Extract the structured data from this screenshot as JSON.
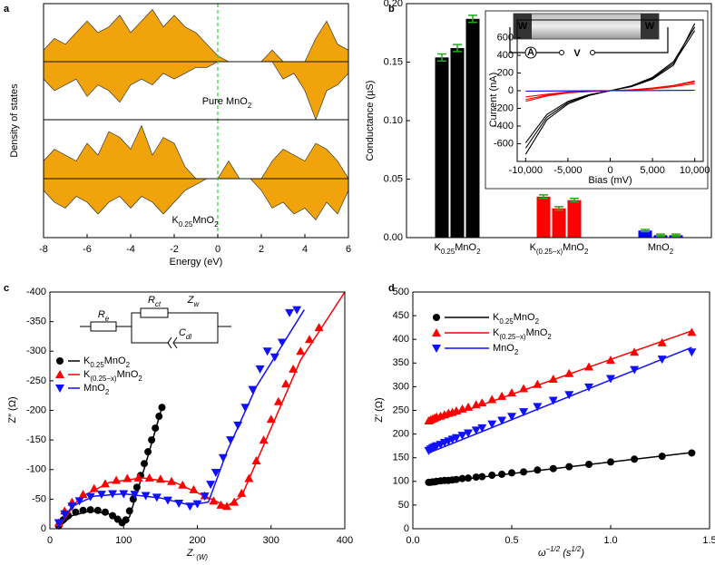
{
  "chart_data": [
    {
      "type": "dos",
      "panel_label": "a",
      "ylabel": "Density of states",
      "annotation": "Pure MnO2",
      "xlim": [
        -8,
        6
      ],
      "ylim": [
        -10,
        10
      ],
      "fermi_level": 0,
      "fermi_color": "#33cc33",
      "x": [
        -8,
        -7.5,
        -7,
        -6.5,
        -6,
        -5.5,
        -5,
        -4.5,
        -4,
        -3.5,
        -3,
        -2.5,
        -2,
        -1.5,
        -1,
        -0.5,
        0,
        0.5,
        1,
        1.5,
        2,
        2.5,
        3,
        3.5,
        4,
        4.5,
        5,
        5.5,
        6
      ],
      "series": [
        {
          "color": "#f0a30a",
          "values": [
            2,
            4,
            3,
            5,
            7,
            5,
            6,
            8,
            5,
            7,
            9,
            6,
            8,
            6,
            5,
            3,
            1,
            0,
            0,
            0,
            0,
            2,
            0,
            0,
            0,
            4,
            7,
            3,
            2
          ]
        },
        {
          "color": "#f0a30a",
          "values": [
            -3,
            -5,
            -4,
            -3,
            -6,
            -4,
            -5,
            -7,
            -4,
            -3,
            -4,
            -2,
            -3,
            -2,
            -1,
            -1,
            0,
            0,
            0,
            0,
            0,
            0,
            -3,
            -2,
            -5,
            -10,
            -5,
            -4,
            -2
          ]
        }
      ]
    },
    {
      "type": "dos",
      "annotation": "K0.25MnO2",
      "xlabel": "Energy (eV)",
      "xlim": [
        -8,
        6
      ],
      "ylim": [
        -10,
        10
      ],
      "fermi_level": 0,
      "fermi_color": "#33cc33",
      "xticks": [
        -8,
        -6,
        -4,
        -2,
        0,
        2,
        4,
        6
      ],
      "x": [
        -8,
        -7.5,
        -7,
        -6.5,
        -6,
        -5.5,
        -5,
        -4.5,
        -4,
        -3.5,
        -3,
        -2.5,
        -2,
        -1.5,
        -1,
        -0.5,
        0,
        0.5,
        1,
        1.5,
        2,
        2.5,
        3,
        3.5,
        4,
        4.5,
        5,
        5.5,
        6
      ],
      "series": [
        {
          "color": "#f0a30a",
          "values": [
            3,
            5,
            4,
            3,
            6,
            4,
            8,
            7,
            5,
            9,
            4,
            7,
            6,
            2,
            0,
            0,
            0,
            3,
            0,
            0,
            0,
            3,
            5,
            4,
            3,
            6,
            5,
            3,
            0
          ]
        },
        {
          "color": "#f0a30a",
          "values": [
            -2,
            -4,
            -5,
            -3,
            -4,
            -6,
            -4,
            -3,
            -5,
            -3,
            -4,
            -6,
            -4,
            -2,
            -1,
            0,
            0,
            0,
            0,
            0,
            -2,
            -5,
            -4,
            -6,
            -5,
            -7,
            -4,
            -6,
            -2
          ]
        }
      ]
    },
    {
      "type": "bar",
      "panel_label": "b",
      "ylabel": "Conductance (µS)",
      "categories": [
        "K0.25MnO2",
        "K(0.25−x)MnO2",
        "MnO2"
      ],
      "category_colors": [
        "#000000",
        "#ff0000",
        "#0000ff"
      ],
      "error_color": "#22aa22",
      "ylim": [
        0,
        0.2
      ],
      "yticks": [
        {
          "value": 0,
          "label": "0.00"
        },
        {
          "value": 0.05,
          "label": "0.05"
        },
        {
          "value": 0.1,
          "label": "0.10"
        },
        {
          "value": 0.15,
          "label": "0.15"
        },
        {
          "value": 0.2,
          "label": "0.20"
        }
      ],
      "series": [
        {
          "values": [
            0.154,
            0.035,
            0.006
          ],
          "errors": [
            0.003,
            0.0015,
            0.001
          ]
        },
        {
          "values": [
            0.162,
            0.025,
            0.002
          ],
          "errors": [
            0.003,
            0.0015,
            0.001
          ]
        },
        {
          "values": [
            0.187,
            0.032,
            0.002
          ],
          "errors": [
            0.003,
            0.0015,
            0.001
          ]
        }
      ]
    },
    {
      "type": "line",
      "xlabel": "Bias (mV)",
      "ylabel": "Current (nA)",
      "device_labels": [
        "W",
        "W",
        "A",
        "V"
      ],
      "xlim": [
        -11000,
        11000
      ],
      "ylim": [
        -800,
        800
      ],
      "xticks": [
        {
          "value": -10000,
          "label": "-10,000"
        },
        {
          "value": -5000,
          "label": "-5,000"
        },
        0,
        {
          "value": 5000,
          "label": "5,000"
        },
        {
          "value": 10000,
          "label": "10,000"
        }
      ],
      "yticks": [
        -600,
        -400,
        -200,
        0,
        200,
        400,
        600
      ],
      "x": [
        -10000,
        -7500,
        -5000,
        -2500,
        0,
        2500,
        5000,
        7500,
        10000
      ],
      "series": [
        {
          "color": "#000000",
          "values": [
            -720,
            -330,
            -150,
            -55,
            0,
            55,
            150,
            330,
            720
          ]
        },
        {
          "color": "#000000",
          "values": [
            -650,
            -300,
            -135,
            -50,
            0,
            50,
            140,
            310,
            680
          ]
        },
        {
          "color": "#000000",
          "values": [
            -590,
            -270,
            -120,
            -45,
            0,
            45,
            130,
            290,
            760
          ]
        },
        {
          "color": "#ff0000",
          "values": [
            -100,
            -50,
            -20,
            -8,
            0,
            8,
            25,
            55,
            100
          ]
        },
        {
          "color": "#ff0000",
          "values": [
            -70,
            -40,
            -15,
            -5,
            0,
            6,
            20,
            45,
            80
          ]
        },
        {
          "color": "#ff0000",
          "values": [
            -120,
            -60,
            -25,
            -10,
            0,
            10,
            30,
            60,
            110
          ]
        },
        {
          "color": "#0000ff",
          "values": [
            -5,
            -3,
            -2,
            -1,
            0,
            1,
            2,
            3,
            5
          ]
        }
      ]
    },
    {
      "type": "scatter",
      "panel_label": "c",
      "xlabel": "Z′ (W)",
      "ylabel": "Z″ (Ω)",
      "circuit_labels": [
        "Re",
        "Rct",
        "Zw",
        "Cdl"
      ],
      "xlim": [
        0,
        400
      ],
      "ylim": [
        0,
        -400
      ],
      "xticks": [
        0,
        100,
        200,
        300,
        400
      ],
      "yticks": [
        0,
        -50,
        -100,
        -150,
        -200,
        -250,
        -300,
        -350,
        -400
      ],
      "series": [
        {
          "name": "K0.25MnO2",
          "color": "#000000",
          "marker": "circle",
          "x": [
            12,
            18,
            25,
            35,
            45,
            55,
            65,
            75,
            85,
            92,
            98,
            103,
            108,
            113,
            118,
            123,
            128,
            133,
            138,
            143,
            148,
            152
          ],
          "values": [
            -5,
            -15,
            -22,
            -28,
            -31,
            -32,
            -31,
            -28,
            -22,
            -16,
            -10,
            -15,
            -30,
            -50,
            -70,
            -90,
            -110,
            -130,
            -150,
            -170,
            -190,
            -205
          ],
          "fit_x": [
            10,
            30,
            55,
            80,
            100,
            108,
            130,
            152
          ],
          "fit_y": [
            0,
            -22,
            -30,
            -25,
            -12,
            -20,
            -110,
            -205
          ]
        },
        {
          "name": "K(0.25−x)MnO2",
          "color": "#ff0000",
          "marker": "triangle-up",
          "x": [
            12,
            20,
            30,
            45,
            60,
            75,
            90,
            105,
            120,
            135,
            150,
            165,
            180,
            195,
            210,
            222,
            232,
            240,
            250,
            260,
            270,
            280,
            290,
            300,
            310,
            320,
            330,
            340,
            352,
            365
          ],
          "values": [
            -10,
            -30,
            -45,
            -58,
            -68,
            -76,
            -82,
            -85,
            -86,
            -86,
            -84,
            -80,
            -74,
            -66,
            -56,
            -47,
            -40,
            -38,
            -45,
            -60,
            -85,
            -115,
            -150,
            -185,
            -215,
            -245,
            -270,
            -300,
            -320,
            -340
          ],
          "fit_x": [
            10,
            40,
            80,
            125,
            170,
            210,
            240,
            260,
            300,
            340,
            400
          ],
          "fit_y": [
            0,
            -52,
            -78,
            -86,
            -78,
            -55,
            -38,
            -55,
            -170,
            -285,
            -400
          ]
        },
        {
          "name": "MnO2",
          "color": "#1010ff",
          "marker": "triangle-down",
          "x": [
            12,
            20,
            30,
            40,
            55,
            70,
            85,
            100,
            115,
            130,
            145,
            160,
            175,
            190,
            200,
            210,
            218,
            225,
            235,
            245,
            255,
            265,
            275,
            285,
            295,
            305,
            315,
            325,
            335
          ],
          "values": [
            -10,
            -25,
            -38,
            -47,
            -54,
            -58,
            -59,
            -59,
            -58,
            -56,
            -53,
            -48,
            -43,
            -38,
            -42,
            -55,
            -75,
            -95,
            -120,
            -150,
            -175,
            -205,
            -235,
            -270,
            -300,
            -290,
            -315,
            -365,
            -370
          ],
          "fit_x": [
            10,
            30,
            60,
            100,
            150,
            190,
            215,
            240,
            280,
            320,
            345
          ],
          "fit_y": [
            0,
            -38,
            -55,
            -59,
            -52,
            -40,
            -45,
            -130,
            -240,
            -320,
            -370
          ]
        }
      ]
    },
    {
      "type": "scatter",
      "panel_label": "d",
      "xlabel": "ω−1/2 (s1/2)",
      "ylabel": "Z′ (Ω)",
      "xlim": [
        0,
        1.5
      ],
      "ylim": [
        0,
        500
      ],
      "xticks": [
        {
          "value": 0,
          "label": "0.0"
        },
        0.5,
        {
          "value": 1,
          "label": "1.0"
        },
        1.5
      ],
      "yticks": [
        0,
        50,
        100,
        150,
        200,
        250,
        300,
        350,
        400,
        450,
        500
      ],
      "series": [
        {
          "name": "K0.25MnO2",
          "color": "#000000",
          "marker": "circle",
          "x": [
            0.08,
            0.09,
            0.1,
            0.11,
            0.12,
            0.14,
            0.16,
            0.18,
            0.2,
            0.22,
            0.25,
            0.28,
            0.32,
            0.35,
            0.4,
            0.45,
            0.5,
            0.56,
            0.63,
            0.71,
            0.79,
            0.89,
            1.0,
            1.12,
            1.26,
            1.41
          ],
          "values": [
            98,
            98,
            99,
            99,
            100,
            101,
            102,
            102,
            103,
            104,
            106,
            107,
            109,
            110,
            113,
            115,
            118,
            120,
            124,
            127,
            131,
            136,
            141,
            147,
            153,
            160
          ],
          "fit_x": [
            0.08,
            1.41
          ],
          "fit_y": [
            96,
            161
          ]
        },
        {
          "name": "K(0.25−x)MnO2",
          "color": "#ff0000",
          "marker": "triangle-up",
          "x": [
            0.08,
            0.09,
            0.1,
            0.11,
            0.12,
            0.14,
            0.16,
            0.18,
            0.2,
            0.22,
            0.25,
            0.28,
            0.32,
            0.35,
            0.4,
            0.45,
            0.5,
            0.56,
            0.63,
            0.71,
            0.79,
            0.89,
            1.0,
            1.12,
            1.26,
            1.41
          ],
          "values": [
            228,
            230,
            232,
            234,
            236,
            238,
            241,
            244,
            246,
            249,
            253,
            257,
            262,
            266,
            273,
            280,
            287,
            296,
            305,
            316,
            328,
            342,
            356,
            373,
            393,
            415
          ],
          "fit_x": [
            0.08,
            1.41
          ],
          "fit_y": [
            222,
            418
          ]
        },
        {
          "name": "MnO2",
          "color": "#1010ff",
          "marker": "triangle-down",
          "x": [
            0.08,
            0.09,
            0.1,
            0.11,
            0.12,
            0.14,
            0.16,
            0.18,
            0.2,
            0.22,
            0.25,
            0.28,
            0.32,
            0.35,
            0.4,
            0.45,
            0.5,
            0.56,
            0.63,
            0.71,
            0.79,
            0.89,
            1.0,
            1.12,
            1.26,
            1.41
          ],
          "values": [
            165,
            168,
            171,
            173,
            175,
            178,
            182,
            185,
            189,
            192,
            197,
            202,
            208,
            213,
            221,
            229,
            237,
            247,
            258,
            271,
            283,
            299,
            317,
            336,
            358,
            373
          ],
          "fit_x": [
            0.08,
            1.41
          ],
          "fit_y": [
            160,
            383
          ]
        }
      ]
    }
  ]
}
